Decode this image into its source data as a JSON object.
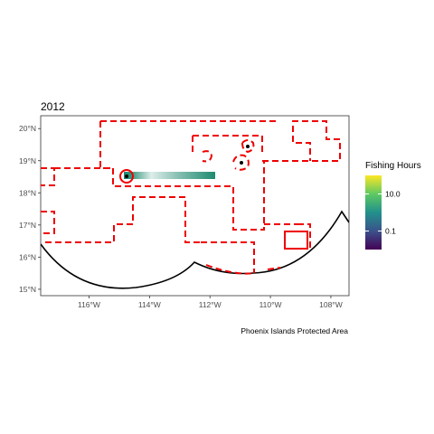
{
  "title": "2012",
  "caption": "Phoenix Islands Protected Area",
  "map": {
    "x_ticks": [
      {
        "lon": -116,
        "label": "116°W"
      },
      {
        "lon": -114,
        "label": "114°W"
      },
      {
        "lon": -112,
        "label": "112°W"
      },
      {
        "lon": -110,
        "label": "110°W"
      },
      {
        "lon": -108,
        "label": "108°W"
      }
    ],
    "y_ticks": [
      {
        "lat": 15,
        "label": "15°N"
      },
      {
        "lat": 16,
        "label": "16°N"
      },
      {
        "lat": 17,
        "label": "17°N"
      },
      {
        "lat": 18,
        "label": "18°N"
      },
      {
        "lat": 19,
        "label": "19°N"
      },
      {
        "lat": 20,
        "label": "20°N"
      }
    ],
    "xlim": [
      -117.6,
      -107.4
    ],
    "ylim": [
      14.8,
      20.4
    ],
    "boundary_color": "#ee0000",
    "fishing_track": {
      "lon_start": -115.0,
      "lon_end": -112.0,
      "lat": 18.45,
      "fade": "left"
    }
  },
  "legend": {
    "title": "Fishing Hours",
    "scale": "log",
    "labels": [
      {
        "label": "10.0",
        "value": 10
      },
      {
        "label": "0.1",
        "value": 0.1
      }
    ],
    "colors": [
      "#fde725",
      "#5ec962",
      "#21918c",
      "#3b528b",
      "#440154"
    ]
  }
}
